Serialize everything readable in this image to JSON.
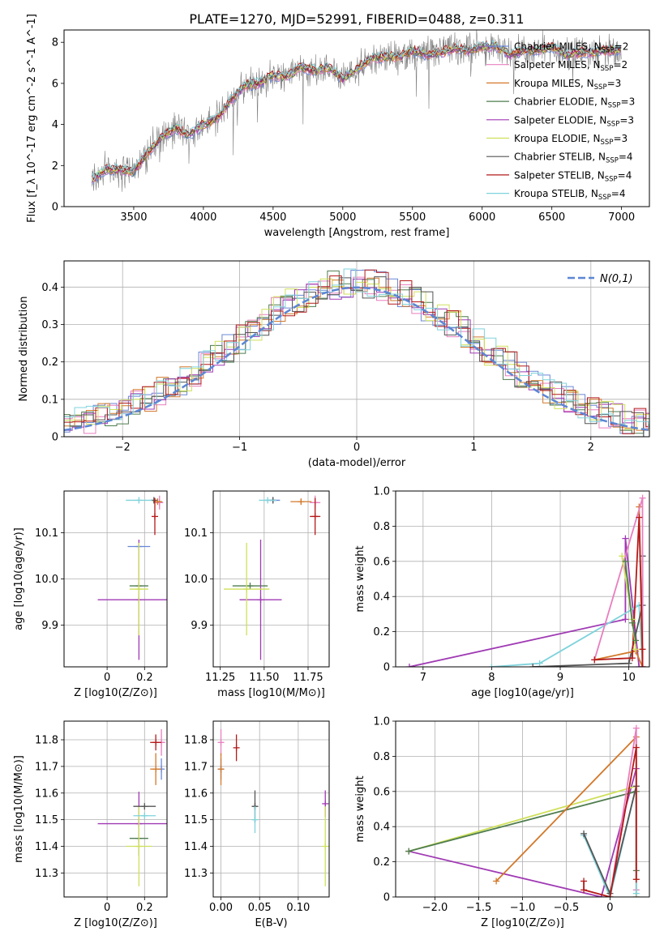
{
  "figure": {
    "title": "PLATE=1270, MJD=52991, FIBERID=0488, z=0.311"
  },
  "colors": {
    "chabrier_miles": "#6a87d6",
    "salpeter_miles": "#e87fbf",
    "kroupa_miles": "#d2782a",
    "chabrier_elodie": "#4f7d4f",
    "salpeter_elodie": "#a03ab4",
    "kroupa_elodie": "#cfe05a",
    "chabrier_stelib": "#555555",
    "salpeter_stelib": "#b41a1a",
    "kroupa_stelib": "#7fd3dc",
    "data_spectrum": "#808080",
    "normal_curve": "#5b86d4"
  },
  "legend_spectrum": [
    "Chabrier MILES, N_SSP=2",
    "Salpeter MILES, N_SSP=2",
    "Kroupa MILES, N_SSP=3",
    "Chabrier ELODIE, N_SSP=3",
    "Salpeter ELODIE, N_SSP=3",
    "Kroupa ELODIE, N_SSP=3",
    "Chabrier STELIB, N_SSP=4",
    "Salpeter STELIB, N_SSP=4",
    "Kroupa STELIB, N_SSP=4"
  ],
  "legend_hist": "N(0,1)",
  "chart_data": [
    {
      "id": "spectrum",
      "type": "line",
      "xlabel": "wavelength [Angstrom, rest frame]",
      "ylabel": "Flux [f_λ 10^-17 erg cm^-2 s^-1 A^-1]",
      "xlim": [
        3000,
        7200
      ],
      "ylim": [
        0,
        8.6
      ],
      "xticks": [
        3500,
        4000,
        4500,
        5000,
        5500,
        6000,
        6500,
        7000
      ],
      "yticks": [
        0,
        2,
        4,
        6,
        8
      ],
      "grid": false,
      "legend_placement": "upper-right",
      "continuum": {
        "x": [
          3200,
          3300,
          3400,
          3500,
          3600,
          3700,
          3800,
          3900,
          4000,
          4100,
          4200,
          4300,
          4400,
          4500,
          4600,
          4700,
          4800,
          4900,
          5000,
          5100,
          5200,
          5300,
          5400,
          5500,
          5600,
          5700,
          5800,
          5900,
          6000,
          6100,
          6200,
          6300,
          6400,
          6500,
          6600,
          6700,
          6800,
          6900,
          7000
        ],
        "y": [
          1.3,
          1.8,
          1.8,
          1.7,
          2.6,
          3.4,
          3.8,
          3.5,
          4.0,
          4.3,
          5.2,
          5.9,
          6.0,
          6.4,
          6.3,
          6.8,
          6.6,
          6.8,
          6.2,
          6.7,
          7.2,
          7.3,
          7.3,
          7.6,
          7.4,
          7.5,
          7.7,
          7.6,
          7.8,
          7.8,
          7.4,
          7.6,
          7.6,
          7.8,
          7.4,
          7.5,
          7.5,
          7.6,
          7.6
        ]
      }
    },
    {
      "id": "residual-histogram",
      "type": "histogram",
      "xlabel": "(data-model)/error",
      "ylabel": "Normed distribution",
      "xlim": [
        -2.5,
        2.5
      ],
      "ylim": [
        0,
        0.47
      ],
      "xticks": [
        -2,
        -1,
        0,
        1,
        2
      ],
      "yticks": [
        0.0,
        0.1,
        0.2,
        0.3,
        0.4
      ],
      "grid": true,
      "legend_placement": "upper-right",
      "bin_width": 0.1,
      "reference_curve": "normal(0,1)"
    },
    {
      "id": "age-vs-Z",
      "type": "errorbar",
      "xlabel": "Z [log10(Z/Z⊙)]",
      "ylabel": "age  [log10(age/yr)]",
      "xlim": [
        -0.23,
        0.32
      ],
      "ylim": [
        9.81,
        10.19
      ],
      "xticks": [
        0.0,
        0.2
      ],
      "yticks": [
        9.9,
        10.0,
        10.1
      ],
      "grid": true,
      "points": [
        {
          "c": "chabrier_miles",
          "x": 0.17,
          "xe": 0.06,
          "y": 10.07,
          "ye": 0.0
        },
        {
          "c": "salpeter_miles",
          "x": 0.28,
          "xe": 0.02,
          "y": 10.165,
          "ye": 0.015
        },
        {
          "c": "kroupa_miles",
          "x": 0.27,
          "xe": 0.025,
          "y": 10.167,
          "ye": 0.005
        },
        {
          "c": "chabrier_elodie",
          "x": 0.17,
          "xe": 0.05,
          "y": 9.985,
          "ye": 0.0
        },
        {
          "c": "salpeter_elodie",
          "x": 0.17,
          "xe": 0.22,
          "y": 9.955,
          "ye": 0.13
        },
        {
          "c": "kroupa_elodie",
          "x": 0.17,
          "xe": 0.05,
          "y": 9.978,
          "ye": 0.1
        },
        {
          "c": "chabrier_stelib",
          "x": 0.25,
          "xe": 0.0,
          "y": 10.17,
          "ye": 0.0
        },
        {
          "c": "salpeter_stelib",
          "x": 0.255,
          "xe": 0.0,
          "y": 10.135,
          "ye": 0.04
        },
        {
          "c": "kroupa_stelib",
          "x": 0.17,
          "xe": 0.07,
          "y": 10.17,
          "ye": 0.0
        }
      ]
    },
    {
      "id": "age-vs-mass",
      "type": "errorbar",
      "xlabel": "mass [log10(M/M⊙)]",
      "ylabel": "",
      "xlim": [
        11.21,
        11.87
      ],
      "ylim": [
        9.81,
        10.19
      ],
      "xticks": [
        11.25,
        11.5,
        11.75
      ],
      "yticks": [
        9.9,
        10.0,
        10.1
      ],
      "grid": true,
      "points": [
        {
          "c": "chabrier_miles",
          "x": 11.55,
          "xe": 0.04,
          "y": 10.17,
          "ye": 0.0
        },
        {
          "c": "salpeter_miles",
          "x": 11.79,
          "xe": 0.03,
          "y": 10.165,
          "ye": 0.015
        },
        {
          "c": "kroupa_miles",
          "x": 11.71,
          "xe": 0.06,
          "y": 10.167,
          "ye": 0.005
        },
        {
          "c": "chabrier_elodie",
          "x": 11.42,
          "xe": 0.1,
          "y": 9.985,
          "ye": 0.0
        },
        {
          "c": "salpeter_elodie",
          "x": 11.48,
          "xe": 0.12,
          "y": 9.955,
          "ye": 0.13
        },
        {
          "c": "kroupa_elodie",
          "x": 11.4,
          "xe": 0.13,
          "y": 9.978,
          "ye": 0.1
        },
        {
          "c": "chabrier_stelib",
          "x": 11.55,
          "xe": 0.0,
          "y": 10.17,
          "ye": 0.0
        },
        {
          "c": "salpeter_stelib",
          "x": 11.79,
          "xe": 0.03,
          "y": 10.135,
          "ye": 0.04
        },
        {
          "c": "kroupa_stelib",
          "x": 11.52,
          "xe": 0.05,
          "y": 10.17,
          "ye": 0.0
        }
      ]
    },
    {
      "id": "weight-vs-age",
      "type": "line",
      "xlabel": "age  [log10(age/yr)]",
      "ylabel": "mass weight",
      "xlim": [
        6.6,
        10.3
      ],
      "ylim": [
        0,
        1.0
      ],
      "xticks": [
        7,
        8,
        9,
        10
      ],
      "yticks": [
        0.0,
        0.2,
        0.4,
        0.6,
        0.8,
        1.0
      ],
      "grid": true,
      "series": [
        {
          "c": "salpeter_elodie",
          "x": [
            6.8,
            9.95,
            9.95,
            10.15
          ],
          "y": [
            0.0,
            0.27,
            0.73,
            0.0
          ]
        },
        {
          "c": "kroupa_stelib",
          "x": [
            8.0,
            8.7,
            10.15,
            10.2,
            10.2
          ],
          "y": [
            0.0,
            0.02,
            0.35,
            0.0,
            0.63
          ]
        },
        {
          "c": "chabrier_stelib",
          "x": [
            8.6,
            10.0,
            10.2,
            10.2
          ],
          "y": [
            0.0,
            0.02,
            0.35,
            0.63
          ]
        },
        {
          "c": "kroupa_miles",
          "x": [
            9.5,
            10.1,
            10.2,
            10.15
          ],
          "y": [
            0.04,
            0.09,
            0.0,
            0.91
          ]
        },
        {
          "c": "salpeter_miles",
          "x": [
            9.5,
            10.2,
            10.2
          ],
          "y": [
            0.04,
            0.96,
            0.0
          ]
        },
        {
          "c": "salpeter_stelib",
          "x": [
            9.5,
            10.05,
            10.15,
            10.2,
            10.2
          ],
          "y": [
            0.04,
            0.05,
            0.85,
            0.1,
            0.0
          ]
        },
        {
          "c": "kroupa_elodie",
          "x": [
            9.9,
            10.05,
            10.1
          ],
          "y": [
            0.63,
            0.27,
            0.1
          ]
        },
        {
          "c": "chabrier_elodie",
          "x": [
            9.95,
            10.05,
            10.1
          ],
          "y": [
            0.6,
            0.25,
            0.15
          ]
        }
      ]
    },
    {
      "id": "mass-vs-Z",
      "type": "errorbar",
      "xlabel": "Z [log10(Z/Z⊙)]",
      "ylabel": "mass [log10(M/M⊙)]",
      "xlim": [
        -0.23,
        0.32
      ],
      "ylim": [
        11.21,
        11.87
      ],
      "xticks": [
        0.0,
        0.2
      ],
      "yticks": [
        11.3,
        11.4,
        11.5,
        11.6,
        11.7,
        11.8
      ],
      "grid": true,
      "points": [
        {
          "c": "chabrier_miles",
          "x": 0.29,
          "xe": 0.0,
          "y": 11.69,
          "ye": 0.04
        },
        {
          "c": "salpeter_miles",
          "x": 0.29,
          "xe": 0.02,
          "y": 11.79,
          "ye": 0.05
        },
        {
          "c": "kroupa_miles",
          "x": 0.26,
          "xe": 0.03,
          "y": 11.69,
          "ye": 0.06
        },
        {
          "c": "chabrier_elodie",
          "x": 0.17,
          "xe": 0.05,
          "y": 11.43,
          "ye": 0.0
        },
        {
          "c": "salpeter_elodie",
          "x": 0.17,
          "xe": 0.22,
          "y": 11.485,
          "ye": 0.12
        },
        {
          "c": "kroupa_elodie",
          "x": 0.17,
          "xe": 0.07,
          "y": 11.4,
          "ye": 0.15
        },
        {
          "c": "chabrier_stelib",
          "x": 0.2,
          "xe": 0.06,
          "y": 11.55,
          "ye": 0.0
        },
        {
          "c": "salpeter_stelib",
          "x": 0.26,
          "xe": 0.03,
          "y": 11.79,
          "ye": 0.03
        },
        {
          "c": "kroupa_stelib",
          "x": 0.2,
          "xe": 0.06,
          "y": 11.515,
          "ye": 0.0
        }
      ]
    },
    {
      "id": "mass-vs-EBV",
      "type": "errorbar",
      "xlabel": "E(B-V)",
      "ylabel": "",
      "xlim": [
        -0.01,
        0.14
      ],
      "ylim": [
        11.21,
        11.87
      ],
      "xticks": [
        0.0,
        0.05,
        0.1
      ],
      "yticks": [
        11.3,
        11.4,
        11.5,
        11.6,
        11.7,
        11.8
      ],
      "grid": true,
      "points": [
        {
          "c": "chabrier_miles",
          "x": 0.0,
          "xe": 0.0,
          "y": 11.69,
          "ye": 0.04
        },
        {
          "c": "salpeter_miles",
          "x": 0.0,
          "xe": 0.0,
          "y": 11.79,
          "ye": 0.05
        },
        {
          "c": "kroupa_miles",
          "x": 0.0,
          "xe": 0.0,
          "y": 11.69,
          "ye": 0.06
        },
        {
          "c": "chabrier_elodie",
          "x": 0.044,
          "xe": 0.0,
          "y": 11.55,
          "ye": 0.0
        },
        {
          "c": "salpeter_elodie",
          "x": 0.135,
          "xe": 0.0,
          "y": 11.56,
          "ye": 0.05
        },
        {
          "c": "kroupa_elodie",
          "x": 0.135,
          "xe": 0.0,
          "y": 11.4,
          "ye": 0.15
        },
        {
          "c": "chabrier_stelib",
          "x": 0.044,
          "xe": 0.0,
          "y": 11.55,
          "ye": 0.06
        },
        {
          "c": "salpeter_stelib",
          "x": 0.02,
          "xe": 0.0,
          "y": 11.77,
          "ye": 0.05
        },
        {
          "c": "kroupa_stelib",
          "x": 0.044,
          "xe": 0.0,
          "y": 11.5,
          "ye": 0.05
        }
      ]
    },
    {
      "id": "weight-vs-Z",
      "type": "line",
      "xlabel": "Z [log10(Z/Z⊙)]",
      "ylabel": "mass weight",
      "xlim": [
        -2.45,
        0.45
      ],
      "ylim": [
        0,
        1.0
      ],
      "xticks": [
        -2.0,
        -1.5,
        -1.0,
        -0.5,
        0.0
      ],
      "yticks": [
        0.0,
        0.2,
        0.4,
        0.6,
        0.8,
        1.0
      ],
      "grid": true,
      "series": [
        {
          "c": "salpeter_elodie",
          "x": [
            -2.3,
            -0.1,
            0.3
          ],
          "y": [
            0.26,
            0.0,
            0.73
          ]
        },
        {
          "c": "kroupa_elodie",
          "x": [
            -2.3,
            0.3,
            0.3
          ],
          "y": [
            0.26,
            0.63,
            0.1
          ]
        },
        {
          "c": "chabrier_elodie",
          "x": [
            -2.3,
            0.3,
            0.3
          ],
          "y": [
            0.26,
            0.6,
            0.15
          ]
        },
        {
          "c": "kroupa_miles",
          "x": [
            -1.3,
            0.3,
            0.3
          ],
          "y": [
            0.09,
            0.91,
            0.0
          ]
        },
        {
          "c": "salpeter_miles",
          "x": [
            0.0,
            0.3,
            0.3
          ],
          "y": [
            0.0,
            0.96,
            0.04
          ]
        },
        {
          "c": "kroupa_stelib",
          "x": [
            -0.3,
            0.0,
            0.3,
            0.3
          ],
          "y": [
            0.35,
            0.0,
            0.63,
            0.02
          ]
        },
        {
          "c": "chabrier_stelib",
          "x": [
            -0.3,
            0.0,
            0.3
          ],
          "y": [
            0.36,
            0.02,
            0.63
          ]
        },
        {
          "c": "salpeter_stelib",
          "x": [
            -0.3,
            -0.3,
            0.0,
            0.3,
            0.3
          ],
          "y": [
            0.09,
            0.04,
            0.0,
            0.85,
            0.1
          ]
        }
      ]
    }
  ]
}
